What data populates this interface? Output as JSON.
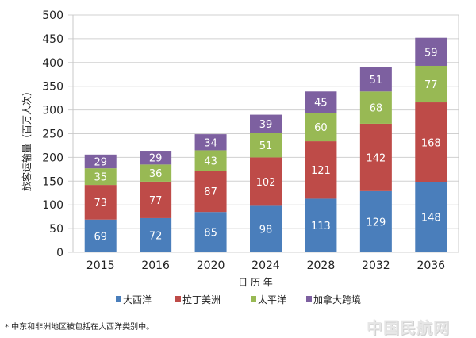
{
  "chart_data": {
    "type": "bar",
    "stacked": true,
    "title": "",
    "xlabel": "日 历 年",
    "ylabel": "旅客运输量（百万人次）",
    "ylim": [
      0,
      500
    ],
    "yticks": [
      0,
      50,
      100,
      150,
      200,
      250,
      300,
      350,
      400,
      450,
      500
    ],
    "grid": true,
    "legend_position": "bottom",
    "categories": [
      "2015",
      "2016",
      "2020",
      "2024",
      "2028",
      "2032",
      "2036"
    ],
    "series": [
      {
        "name": "大西洋",
        "color": "#4a7ebb",
        "values": [
          69,
          72,
          85,
          98,
          113,
          129,
          148
        ]
      },
      {
        "name": "拉丁美洲",
        "color": "#be4b48",
        "values": [
          73,
          77,
          87,
          102,
          121,
          142,
          168
        ]
      },
      {
        "name": "太平洋",
        "color": "#98b954",
        "values": [
          35,
          36,
          43,
          51,
          60,
          68,
          77
        ]
      },
      {
        "name": "加拿大跨境",
        "color": "#7d60a0",
        "values": [
          29,
          29,
          34,
          39,
          45,
          51,
          59
        ]
      }
    ]
  },
  "footnote": "* 中东和非洲地区被包括在大西洋类别中。",
  "watermark": "中国民航网"
}
